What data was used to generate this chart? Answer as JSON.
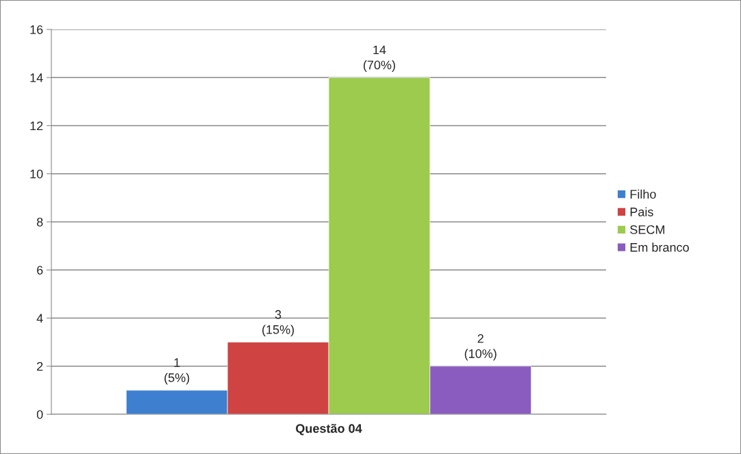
{
  "chart_data": {
    "type": "bar",
    "categories": [
      "Questão 04"
    ],
    "series": [
      {
        "name": "Filho",
        "color": "#3f7fcf",
        "values": [
          1
        ],
        "value_labels": [
          "1\n(5%)"
        ]
      },
      {
        "name": "Pais",
        "color": "#cf4343",
        "values": [
          3
        ],
        "value_labels": [
          "3\n(15%)"
        ]
      },
      {
        "name": "SECM",
        "color": "#9ccb4e",
        "values": [
          14
        ],
        "value_labels": [
          "14\n(70%)"
        ]
      },
      {
        "name": "Em branco",
        "color": "#8a5cbf",
        "values": [
          2
        ],
        "value_labels": [
          "2\n(10%)"
        ]
      }
    ],
    "ylim": [
      0,
      16
    ],
    "yticks": [
      0,
      2,
      4,
      6,
      8,
      10,
      12,
      14,
      16
    ],
    "grid": "y",
    "legend": "right"
  }
}
